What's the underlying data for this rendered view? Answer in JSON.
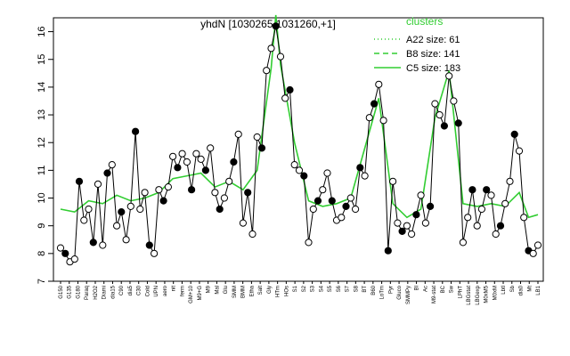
{
  "chart_data": {
    "type": "line",
    "title": "yhdN [1030265,1031260,+1]",
    "xlabel": "",
    "ylabel": "",
    "ylim": [
      7,
      16.5
    ],
    "yticks": [
      7,
      8,
      9,
      10,
      11,
      12,
      13,
      14,
      15,
      16
    ],
    "grid": false,
    "legend": {
      "title": "clusters",
      "position": "top-right",
      "entries": [
        {
          "label": "A22 size: 61",
          "style": "dotted",
          "color": "#32cd32"
        },
        {
          "label": "B8 size: 141",
          "style": "dashed",
          "color": "#32cd32"
        },
        {
          "label": "C5 size: 183",
          "style": "solid",
          "color": "#32cd32"
        }
      ]
    },
    "x_tick_labels": [
      "G150",
      "G135",
      "G180",
      "Paraq",
      "H2O2",
      "Diami",
      "dia15",
      "C90",
      "dia5",
      "C30",
      "Cold",
      "UPN",
      "aero",
      "nit",
      "ferm",
      "GM+10",
      "M9+G",
      "M9",
      "Mal",
      "Glu",
      "SMM",
      "BMM",
      "Etha",
      "Salt",
      "Gly",
      "HTm",
      "HOs",
      "S1",
      "S2",
      "S3",
      "S4",
      "S5",
      "S6",
      "S7",
      "S8",
      "BT",
      "B60",
      "LoTm",
      "Pyr",
      "Gluco",
      "SMMPy",
      "Bl",
      "Ac",
      "M9-stat",
      "BC",
      "Sw",
      "LPhT",
      "LBGstat",
      "LBGexp",
      "M0xM5",
      "M0xM",
      "Lbtl",
      "Sb",
      "dia0",
      "Mt",
      "LB1"
    ],
    "series": [
      {
        "line_color": "#000000",
        "points": [
          [
            1,
            8.2
          ],
          [
            2,
            8.0
          ],
          [
            3,
            7.7
          ],
          [
            4,
            7.8
          ],
          [
            5,
            10.6
          ],
          [
            6,
            9.2
          ],
          [
            7,
            9.6
          ],
          [
            8,
            8.4
          ],
          [
            9,
            10.5
          ],
          [
            10,
            8.3
          ],
          [
            11,
            10.9
          ],
          [
            12,
            11.2
          ],
          [
            13,
            9.0
          ],
          [
            14,
            9.5
          ],
          [
            15,
            8.5
          ],
          [
            16,
            9.7
          ],
          [
            17,
            12.4
          ],
          [
            18,
            9.6
          ],
          [
            19,
            10.2
          ],
          [
            20,
            8.3
          ],
          [
            21,
            8.0
          ],
          [
            22,
            10.3
          ],
          [
            23,
            9.9
          ],
          [
            24,
            10.4
          ],
          [
            25,
            11.5
          ],
          [
            26,
            11.1
          ],
          [
            27,
            11.6
          ],
          [
            28,
            11.3
          ],
          [
            29,
            10.3
          ],
          [
            30,
            11.6
          ],
          [
            31,
            11.4
          ],
          [
            32,
            11.0
          ],
          [
            33,
            11.8
          ],
          [
            34,
            10.2
          ],
          [
            35,
            9.6
          ],
          [
            36,
            10.0
          ],
          [
            37,
            10.6
          ],
          [
            38,
            11.3
          ],
          [
            39,
            12.3
          ],
          [
            40,
            9.1
          ],
          [
            41,
            10.2
          ],
          [
            42,
            8.7
          ],
          [
            43,
            12.2
          ],
          [
            44,
            11.8
          ],
          [
            45,
            14.6
          ],
          [
            46,
            15.4
          ],
          [
            47,
            16.2
          ],
          [
            48,
            15.1
          ],
          [
            49,
            13.6
          ],
          [
            50,
            13.9
          ],
          [
            51,
            11.2
          ],
          [
            52,
            11.0
          ],
          [
            53,
            10.8
          ],
          [
            54,
            8.4
          ],
          [
            55,
            9.6
          ],
          [
            56,
            9.9
          ],
          [
            57,
            10.3
          ],
          [
            58,
            10.9
          ],
          [
            59,
            9.9
          ],
          [
            60,
            9.2
          ],
          [
            61,
            9.3
          ],
          [
            62,
            9.7
          ],
          [
            63,
            10.0
          ],
          [
            64,
            9.6
          ],
          [
            65,
            11.1
          ],
          [
            66,
            10.8
          ],
          [
            67,
            12.9
          ],
          [
            68,
            13.4
          ],
          [
            69,
            14.1
          ],
          [
            70,
            12.8
          ],
          [
            71,
            8.1
          ],
          [
            72,
            10.6
          ],
          [
            73,
            9.1
          ],
          [
            74,
            8.8
          ],
          [
            75,
            9.0
          ],
          [
            76,
            8.7
          ],
          [
            77,
            9.4
          ],
          [
            78,
            10.1
          ],
          [
            79,
            9.1
          ],
          [
            80,
            9.7
          ],
          [
            81,
            13.4
          ],
          [
            82,
            13.0
          ],
          [
            83,
            12.6
          ],
          [
            84,
            14.4
          ],
          [
            85,
            13.5
          ],
          [
            86,
            12.7
          ],
          [
            87,
            8.4
          ],
          [
            88,
            9.3
          ],
          [
            89,
            10.3
          ],
          [
            90,
            9.0
          ],
          [
            91,
            9.6
          ],
          [
            92,
            10.3
          ],
          [
            93,
            10.1
          ],
          [
            94,
            8.7
          ],
          [
            95,
            9.0
          ],
          [
            96,
            9.8
          ],
          [
            97,
            10.6
          ],
          [
            98,
            12.3
          ],
          [
            99,
            11.7
          ],
          [
            100,
            9.3
          ],
          [
            101,
            8.1
          ],
          [
            102,
            8.0
          ],
          [
            103,
            8.3
          ]
        ]
      },
      {
        "line_color": "#32cd32",
        "points": [
          [
            1,
            9.6
          ],
          [
            4,
            9.5
          ],
          [
            7,
            9.9
          ],
          [
            10,
            9.8
          ],
          [
            13,
            10.1
          ],
          [
            16,
            9.9
          ],
          [
            19,
            10.0
          ],
          [
            22,
            10.2
          ],
          [
            25,
            10.7
          ],
          [
            28,
            10.8
          ],
          [
            31,
            10.9
          ],
          [
            34,
            10.4
          ],
          [
            37,
            10.6
          ],
          [
            40,
            10.3
          ],
          [
            43,
            11.0
          ],
          [
            46,
            14.7
          ],
          [
            47,
            16.6
          ],
          [
            48,
            14.8
          ],
          [
            51,
            12.0
          ],
          [
            54,
            9.9
          ],
          [
            57,
            9.7
          ],
          [
            60,
            9.8
          ],
          [
            63,
            10.0
          ],
          [
            66,
            11.8
          ],
          [
            69,
            13.6
          ],
          [
            72,
            9.8
          ],
          [
            75,
            9.3
          ],
          [
            78,
            9.6
          ],
          [
            81,
            12.9
          ],
          [
            84,
            14.6
          ],
          [
            87,
            9.8
          ],
          [
            90,
            9.7
          ],
          [
            93,
            9.8
          ],
          [
            96,
            9.7
          ],
          [
            99,
            10.2
          ],
          [
            101,
            9.3
          ],
          [
            103,
            9.4
          ]
        ]
      }
    ]
  }
}
